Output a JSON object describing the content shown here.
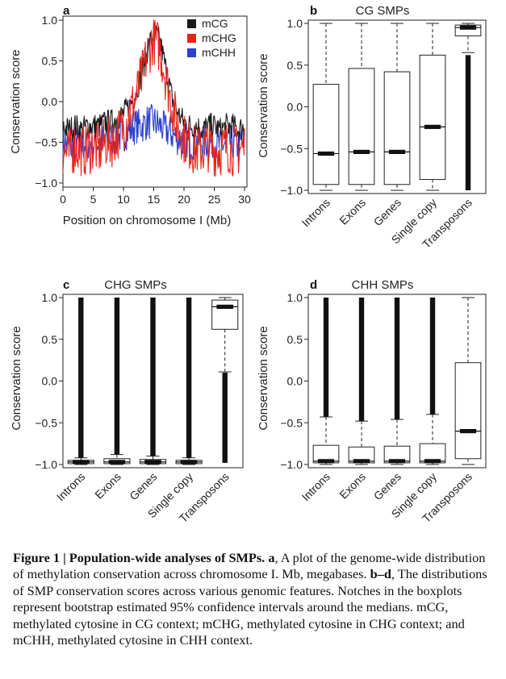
{
  "colors": {
    "mCG": "#1a1a1a",
    "mCHG": "#e8231a",
    "mCHH": "#2c3fd0",
    "box": "#111111"
  },
  "panel_a": {
    "letter": "a",
    "ylabel": "Conservation score",
    "xlabel": "Position on chromosome I (Mb)",
    "yticks": [
      "1.0",
      "0.5",
      "0.0",
      "−0.5",
      "−1.0"
    ],
    "xticks": [
      "0",
      "5",
      "10",
      "15",
      "20",
      "25",
      "30"
    ],
    "legend": [
      "mCG",
      "mCHG",
      "mCHH"
    ]
  },
  "panel_b": {
    "letter": "b",
    "title": "CG SMPs",
    "ylabel": "Conservation score",
    "yticks": [
      "1.0",
      "0.5",
      "0.0",
      "−0.5",
      "−1.0"
    ],
    "categories": [
      "Introns",
      "Exons",
      "Genes",
      "Single copy",
      "Transposons"
    ]
  },
  "panel_c": {
    "letter": "c",
    "title": "CHG SMPs",
    "ylabel": "Conservation score",
    "yticks": [
      "1.0",
      "0.5",
      "0.0",
      "−0.5",
      "−1.0"
    ],
    "categories": [
      "Introns",
      "Exons",
      "Genes",
      "Single copy",
      "Transposons"
    ]
  },
  "panel_d": {
    "letter": "d",
    "title": "CHH SMPs",
    "ylabel": "Conservation score",
    "yticks": [
      "1.0",
      "0.5",
      "0.0",
      "−0.5",
      "−1.0"
    ],
    "categories": [
      "Introns",
      "Exons",
      "Genes",
      "Single copy",
      "Transposons"
    ]
  },
  "caption": {
    "fig": "Figure 1",
    "sep": "|",
    "heading": "Population-wide analyses of SMPs.",
    "a_letter": "a",
    "a_text": ", A plot of the genome-wide distribution of methylation conservation across chromosome I. Mb, megabases.",
    "bd_letters": "b–d",
    "bd_text": ", The distributions of SMP conservation scores across various genomic features. Notches in the boxplots represent bootstrap estimated 95% confidence intervals around the medians. mCG, methylated cytosine in CG context; mCHG, methylated cytosine in CHG context; and mCHH, methylated cytosine in CHH context."
  },
  "chart_data": [
    {
      "type": "line",
      "panel": "a",
      "xlabel": "Position on chromosome I (Mb)",
      "ylabel": "Conservation score",
      "xlim": [
        0,
        30.4
      ],
      "ylim": [
        -1.05,
        1.05
      ],
      "legend_position": "top-right",
      "x": [
        0,
        1,
        2,
        3,
        4,
        5,
        6,
        7,
        8,
        9,
        10,
        11,
        12,
        13,
        14,
        15,
        16,
        17,
        18,
        19,
        20,
        21,
        22,
        23,
        24,
        25,
        26,
        27,
        28,
        29,
        30
      ],
      "series": [
        {
          "name": "mCG",
          "values": [
            -0.3,
            -0.35,
            -0.3,
            -0.35,
            -0.3,
            -0.3,
            -0.3,
            -0.25,
            -0.25,
            -0.2,
            -0.15,
            -0.05,
            0.1,
            0.35,
            0.65,
            0.85,
            0.75,
            0.4,
            0.05,
            -0.15,
            -0.25,
            -0.3,
            -0.3,
            -0.35,
            -0.3,
            -0.3,
            -0.35,
            -0.3,
            -0.3,
            -0.35,
            -0.3
          ]
        },
        {
          "name": "mCHG",
          "values": [
            -0.6,
            -0.65,
            -0.55,
            -0.6,
            -0.6,
            -0.55,
            -0.6,
            -0.5,
            -0.5,
            -0.4,
            -0.3,
            -0.15,
            0.05,
            0.3,
            0.6,
            0.78,
            0.65,
            0.3,
            -0.05,
            -0.3,
            -0.45,
            -0.55,
            -0.6,
            -0.6,
            -0.55,
            -0.6,
            -0.6,
            -0.55,
            -0.6,
            -0.6,
            -0.55
          ]
        },
        {
          "name": "mCHH",
          "values": [
            -0.5,
            -0.55,
            -0.5,
            -0.55,
            -0.5,
            -0.5,
            -0.5,
            -0.45,
            -0.45,
            -0.45,
            -0.4,
            -0.35,
            -0.3,
            -0.3,
            -0.25,
            -0.25,
            -0.3,
            -0.35,
            -0.4,
            -0.45,
            -0.45,
            -0.5,
            -0.5,
            -0.5,
            -0.5,
            -0.5,
            -0.55,
            -0.5,
            -0.5,
            -0.55,
            -0.5
          ]
        }
      ]
    },
    {
      "type": "box",
      "panel": "b",
      "title": "CG SMPs",
      "ylabel": "Conservation score",
      "ylim": [
        -1.0,
        1.0
      ],
      "categories": [
        "Introns",
        "Exons",
        "Genes",
        "Single copy",
        "Transposons"
      ],
      "boxes": [
        {
          "whisker_low": -1.0,
          "q1": -0.93,
          "median": -0.56,
          "q3": 0.27,
          "whisker_high": 1.0
        },
        {
          "whisker_low": -1.0,
          "q1": -0.93,
          "median": -0.54,
          "q3": 0.46,
          "whisker_high": 1.0
        },
        {
          "whisker_low": -1.0,
          "q1": -0.93,
          "median": -0.54,
          "q3": 0.42,
          "whisker_high": 1.0
        },
        {
          "whisker_low": -1.0,
          "q1": -0.87,
          "median": -0.24,
          "q3": 0.62,
          "whisker_high": 1.0
        },
        {
          "whisker_low": 0.65,
          "q1": 0.85,
          "median": 0.95,
          "q3": 0.98,
          "whisker_high": 1.0,
          "outliers_from": -1.0,
          "outliers_to": 0.62
        }
      ]
    },
    {
      "type": "box",
      "panel": "c",
      "title": "CHG SMPs",
      "ylabel": "Conservation score",
      "ylim": [
        -1.0,
        1.0
      ],
      "categories": [
        "Introns",
        "Exons",
        "Genes",
        "Single copy",
        "Transposons"
      ],
      "boxes": [
        {
          "whisker_low": -1.0,
          "q1": -0.99,
          "median": -0.97,
          "q3": -0.95,
          "whisker_high": -0.92,
          "outliers_from": -0.92,
          "outliers_to": 1.0
        },
        {
          "whisker_low": -1.0,
          "q1": -0.99,
          "median": -0.97,
          "q3": -0.93,
          "whisker_high": -0.88,
          "outliers_from": -0.88,
          "outliers_to": 1.0
        },
        {
          "whisker_low": -1.0,
          "q1": -0.99,
          "median": -0.97,
          "q3": -0.94,
          "whisker_high": -0.9,
          "outliers_from": -0.9,
          "outliers_to": 1.0
        },
        {
          "whisker_low": -1.0,
          "q1": -0.99,
          "median": -0.97,
          "q3": -0.95,
          "whisker_high": -0.92,
          "outliers_from": -0.92,
          "outliers_to": 1.0
        },
        {
          "whisker_low": 0.11,
          "q1": 0.62,
          "median": 0.89,
          "q3": 0.97,
          "whisker_high": 1.0,
          "outliers_from": -0.98,
          "outliers_to": 0.1
        }
      ]
    },
    {
      "type": "box",
      "panel": "d",
      "title": "CHH SMPs",
      "ylabel": "Conservation score",
      "ylim": [
        -1.0,
        1.0
      ],
      "categories": [
        "Introns",
        "Exons",
        "Genes",
        "Single copy",
        "Transposons"
      ],
      "boxes": [
        {
          "whisker_low": -1.0,
          "q1": -0.98,
          "median": -0.96,
          "q3": -0.77,
          "whisker_high": -0.43,
          "outliers_from": -0.43,
          "outliers_to": 1.0
        },
        {
          "whisker_low": -1.0,
          "q1": -0.98,
          "median": -0.96,
          "q3": -0.79,
          "whisker_high": -0.48,
          "outliers_from": -0.48,
          "outliers_to": 1.0
        },
        {
          "whisker_low": -1.0,
          "q1": -0.98,
          "median": -0.96,
          "q3": -0.78,
          "whisker_high": -0.46,
          "outliers_from": -0.46,
          "outliers_to": 1.0
        },
        {
          "whisker_low": -1.0,
          "q1": -0.98,
          "median": -0.96,
          "q3": -0.75,
          "whisker_high": -0.4,
          "outliers_from": -0.4,
          "outliers_to": 1.0
        },
        {
          "whisker_low": -1.0,
          "q1": -0.93,
          "median": -0.6,
          "q3": 0.22,
          "whisker_high": 1.0
        }
      ]
    }
  ]
}
